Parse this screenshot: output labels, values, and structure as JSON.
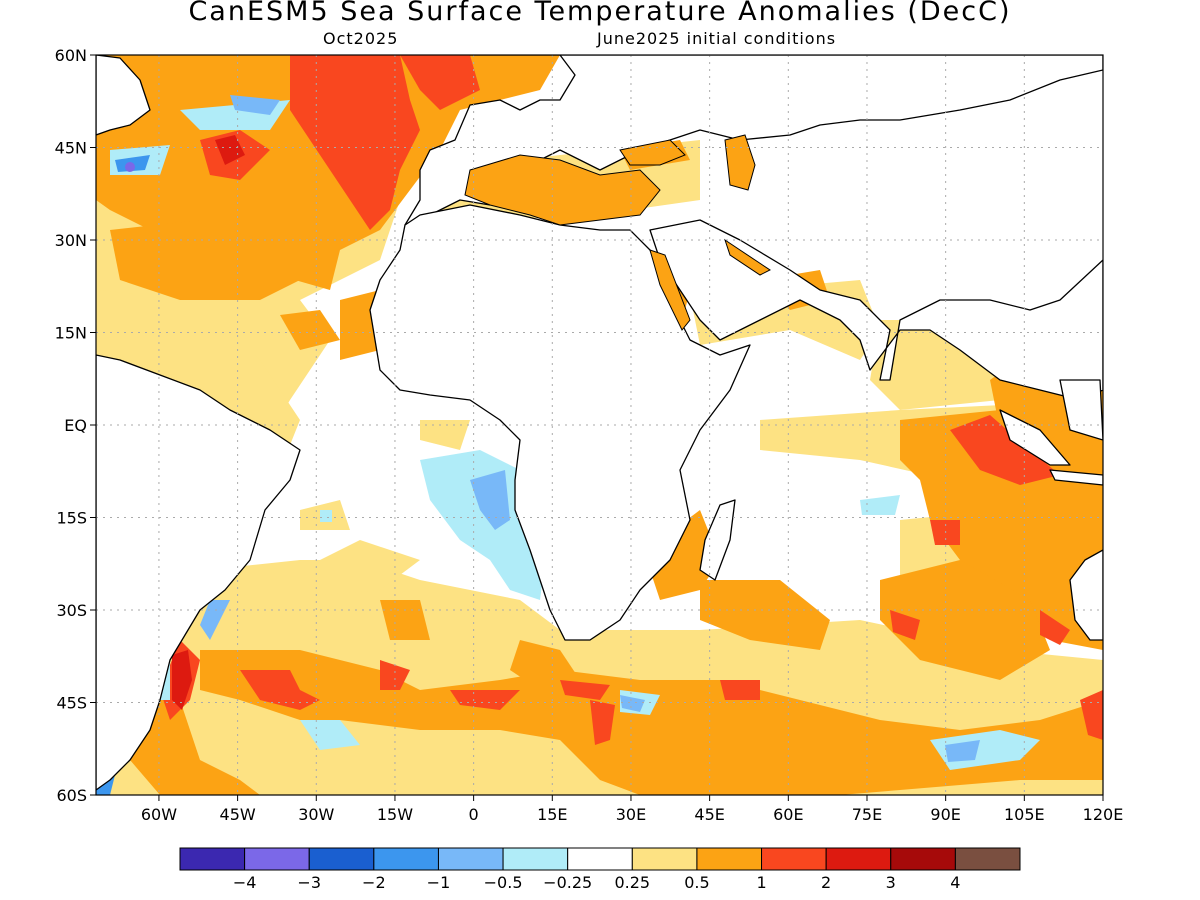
{
  "title": "CanESM5 Sea Surface Temperature Anomalies (DecC)",
  "subtitle_left": "Oct2025",
  "subtitle_right": "June2025 initial conditions",
  "map": {
    "lon_range": [
      -72,
      120
    ],
    "lat_range": [
      -60,
      60
    ],
    "lat_ticks": [
      {
        "value": 60,
        "label": "60N"
      },
      {
        "value": 45,
        "label": "45N"
      },
      {
        "value": 30,
        "label": "30N"
      },
      {
        "value": 15,
        "label": "15N"
      },
      {
        "value": 0,
        "label": "EQ"
      },
      {
        "value": -15,
        "label": "15S"
      },
      {
        "value": -30,
        "label": "30S"
      },
      {
        "value": -45,
        "label": "45S"
      },
      {
        "value": -60,
        "label": "60S"
      }
    ],
    "lon_ticks": [
      {
        "value": -60,
        "label": "60W"
      },
      {
        "value": -45,
        "label": "45W"
      },
      {
        "value": -30,
        "label": "30W"
      },
      {
        "value": -15,
        "label": "15W"
      },
      {
        "value": 0,
        "label": "0"
      },
      {
        "value": 15,
        "label": "15E"
      },
      {
        "value": 30,
        "label": "30E"
      },
      {
        "value": 45,
        "label": "45E"
      },
      {
        "value": 60,
        "label": "60E"
      },
      {
        "value": 75,
        "label": "75E"
      },
      {
        "value": 90,
        "label": "90E"
      },
      {
        "value": 105,
        "label": "105E"
      },
      {
        "value": 120,
        "label": "120E"
      }
    ],
    "grid": "dotted"
  },
  "colorbar": {
    "colors": [
      "#3b28b0",
      "#7b68e8",
      "#1a5fd0",
      "#3c96ee",
      "#78b8f8",
      "#b0ecf8",
      "#ffffff",
      "#fde283",
      "#fca314",
      "#f9471f",
      "#dd1a10",
      "#a60a0a",
      "#7a4f40"
    ],
    "labels": [
      "−4",
      "−3",
      "−2",
      "−1",
      "−0.5",
      "−0.25",
      "0.25",
      "0.5",
      "1",
      "2",
      "3",
      "4"
    ]
  },
  "chart_data": {
    "type": "heatmap",
    "variable": "Sea Surface Temperature Anomalies (DecC)",
    "model": "CanESM5",
    "valid": "Oct2025",
    "initial_conditions": "June2025",
    "lon_range": [
      -72,
      120
    ],
    "lat_range": [
      -60,
      60
    ],
    "levels": [
      -4,
      -3,
      -2,
      -1,
      -0.5,
      -0.25,
      0.25,
      0.5,
      1,
      2,
      3,
      4
    ],
    "features": [
      {
        "region": "North Atlantic 40N-60N",
        "anomaly_range": [
          1,
          2
        ]
      },
      {
        "region": "Northwest Atlantic off Newfoundland",
        "anomaly_range": [
          -1,
          0.5
        ]
      },
      {
        "region": "Tropical North Atlantic",
        "anomaly_range": [
          0.25,
          0.5
        ]
      },
      {
        "region": "Mediterranean Sea",
        "anomaly_range": [
          0.5,
          2
        ]
      },
      {
        "region": "Eastern Equatorial Indian Ocean near Sumatra",
        "anomaly_range": [
          1,
          2
        ]
      },
      {
        "region": "Southeast Indian Ocean",
        "anomaly_range": [
          0.5,
          1
        ]
      },
      {
        "region": "Benguela / off Angola",
        "anomaly_range": [
          -1,
          -0.25
        ]
      },
      {
        "region": "Southwest Atlantic off Argentina",
        "anomaly_range": [
          2,
          3
        ]
      },
      {
        "region": "Southern Ocean 40S-50S band",
        "anomaly_range": [
          0.5,
          2
        ]
      },
      {
        "region": "Southern Ocean near 55S 90E",
        "anomaly_range": [
          -1,
          -0.25
        ]
      }
    ]
  }
}
